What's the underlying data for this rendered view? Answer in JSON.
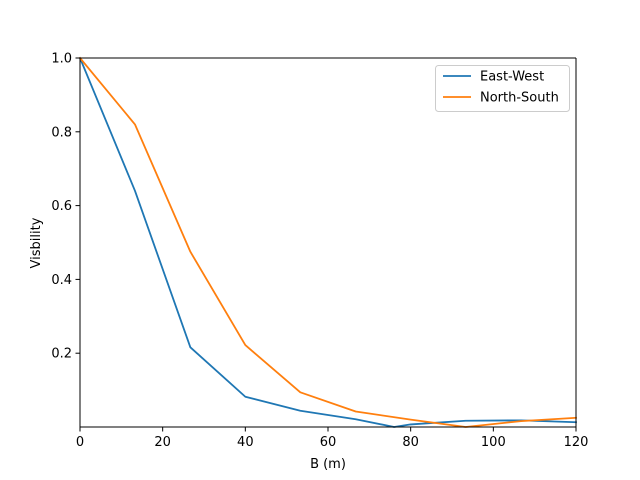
{
  "chart_data": {
    "type": "line",
    "title": "",
    "xlabel": "B (m)",
    "ylabel": "Visbility",
    "xlim": [
      0,
      120
    ],
    "ylim": [
      0,
      1.0
    ],
    "xticks": [
      0,
      20,
      40,
      60,
      80,
      100,
      120
    ],
    "xtick_labels": [
      "0",
      "20",
      "40",
      "60",
      "80",
      "100",
      "120"
    ],
    "yticks": [
      0.2,
      0.4,
      0.6,
      0.8,
      1.0
    ],
    "ytick_labels": [
      "0.2",
      "0.4",
      "0.6",
      "0.8",
      "1.0"
    ],
    "grid": false,
    "legend_position": "top-right",
    "series": [
      {
        "name": "East-West",
        "color": "#1f77b4",
        "x": [
          0,
          13.3,
          26.7,
          40.0,
          53.3,
          66.7,
          76.0,
          80.0,
          93.3,
          106.7,
          120.0
        ],
        "y": [
          1.0,
          0.64,
          0.216,
          0.082,
          0.044,
          0.021,
          0.0,
          0.007,
          0.017,
          0.018,
          0.013
        ]
      },
      {
        "name": "North-South",
        "color": "#ff7f0e",
        "x": [
          0,
          13.3,
          26.7,
          40.0,
          53.3,
          66.7,
          80.0,
          93.3,
          106.7,
          120.0
        ],
        "y": [
          1.0,
          0.82,
          0.475,
          0.222,
          0.094,
          0.042,
          0.02,
          0.0,
          0.016,
          0.025
        ]
      }
    ]
  }
}
